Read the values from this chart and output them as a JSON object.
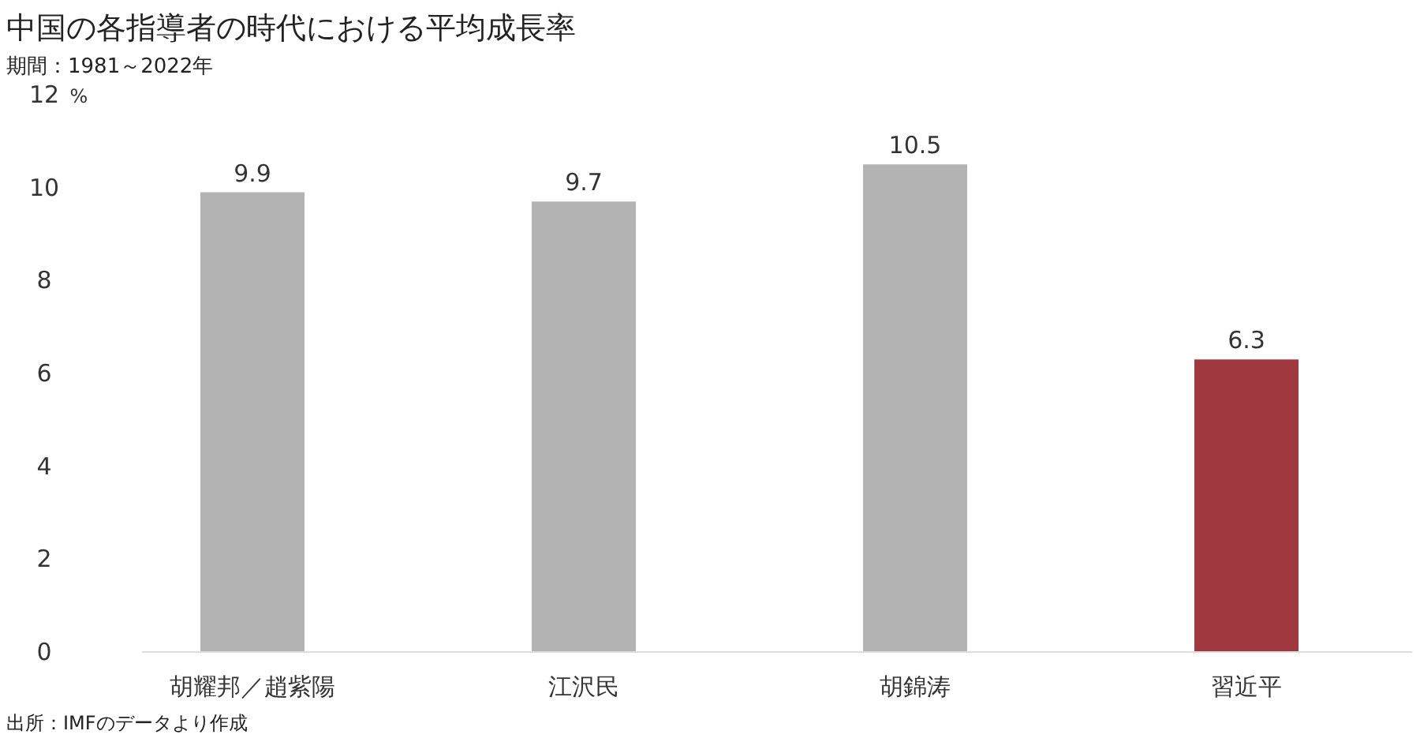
{
  "chart_data": {
    "type": "bar",
    "title": "中国の各指導者の時代における平均成長率",
    "subtitle": "期間：1981～2022年",
    "ylabel": "%",
    "categories": [
      "胡耀邦／趙紫陽",
      "江沢民",
      "胡錦涛",
      "習近平"
    ],
    "values": [
      9.9,
      9.7,
      10.5,
      6.3
    ],
    "colors": [
      "#b3b3b3",
      "#b3b3b3",
      "#b3b3b3",
      "#a0393f"
    ],
    "ylim": [
      0,
      12
    ],
    "yticks": [
      0,
      2,
      4,
      6,
      8,
      10,
      12
    ],
    "grid": false,
    "data_labels": true,
    "annotations": [
      "出所：IMFのデータより作成"
    ]
  }
}
